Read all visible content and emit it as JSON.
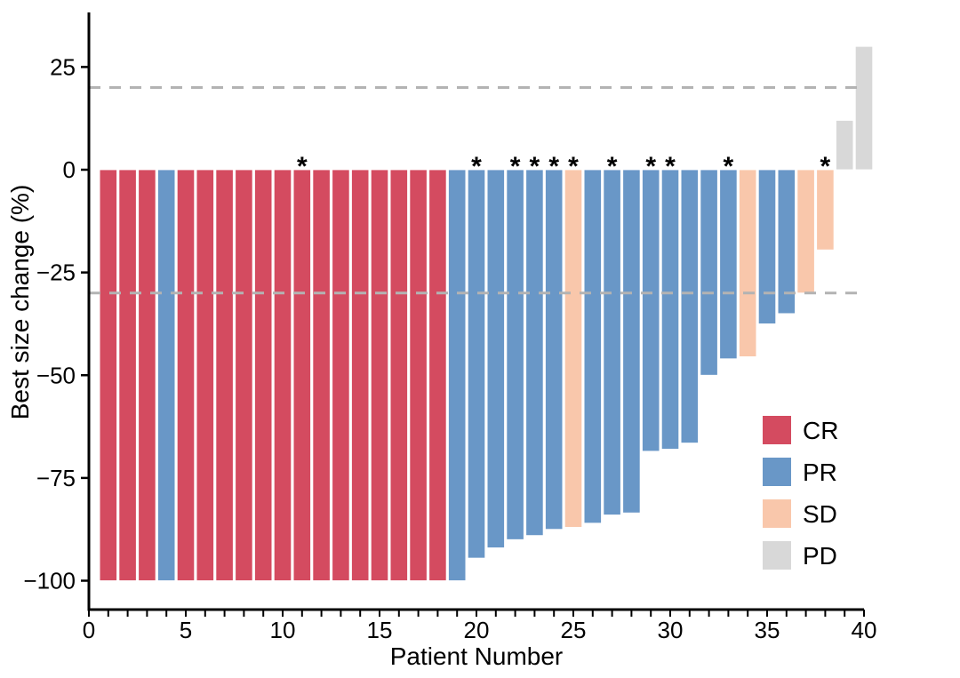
{
  "figure": {
    "background": "#ffffff"
  },
  "chart_data": {
    "type": "bar",
    "subtype": "waterfall",
    "title": "",
    "xlabel": "Patient Number",
    "ylabel": "Best size change (%)",
    "xlim": [
      0,
      40.5
    ],
    "ylim": [
      -107,
      38
    ],
    "x_major_ticks": [
      0,
      5,
      10,
      15,
      20,
      25,
      30,
      35,
      40
    ],
    "x_minor_tick_every": 1,
    "y_ticks": [
      25,
      0,
      -25,
      -50,
      -75,
      -100
    ],
    "y_tick_labels": [
      "25",
      "0",
      "−25",
      "−50",
      "−75",
      "−100"
    ],
    "grid": false,
    "reference_lines": [
      {
        "value": 20,
        "style": "dashed",
        "color": "#b3b3b3"
      },
      {
        "value": -30,
        "style": "dashed",
        "color": "#b3b3b3"
      }
    ],
    "legend": {
      "position": "right-middle",
      "entries": [
        {
          "label": "CR",
          "color": "#d44b60"
        },
        {
          "label": "PR",
          "color": "#6997c7"
        },
        {
          "label": "SD",
          "color": "#f9c7ab"
        },
        {
          "label": "PD",
          "color": "#d8d8d8"
        }
      ]
    },
    "annotation_symbol": "*",
    "patients": [
      {
        "patient": 1,
        "value": -100,
        "response": "CR",
        "asterisk": false
      },
      {
        "patient": 2,
        "value": -100,
        "response": "CR",
        "asterisk": false
      },
      {
        "patient": 3,
        "value": -100,
        "response": "CR",
        "asterisk": false
      },
      {
        "patient": 4,
        "value": -100,
        "response": "PR",
        "asterisk": false
      },
      {
        "patient": 5,
        "value": -100,
        "response": "CR",
        "asterisk": false
      },
      {
        "patient": 6,
        "value": -100,
        "response": "CR",
        "asterisk": false
      },
      {
        "patient": 7,
        "value": -100,
        "response": "CR",
        "asterisk": false
      },
      {
        "patient": 8,
        "value": -100,
        "response": "CR",
        "asterisk": false
      },
      {
        "patient": 9,
        "value": -100,
        "response": "CR",
        "asterisk": false
      },
      {
        "patient": 10,
        "value": -100,
        "response": "CR",
        "asterisk": false
      },
      {
        "patient": 11,
        "value": -100,
        "response": "CR",
        "asterisk": true
      },
      {
        "patient": 12,
        "value": -100,
        "response": "CR",
        "asterisk": false
      },
      {
        "patient": 13,
        "value": -100,
        "response": "CR",
        "asterisk": false
      },
      {
        "patient": 14,
        "value": -100,
        "response": "CR",
        "asterisk": false
      },
      {
        "patient": 15,
        "value": -100,
        "response": "CR",
        "asterisk": false
      },
      {
        "patient": 16,
        "value": -100,
        "response": "CR",
        "asterisk": false
      },
      {
        "patient": 17,
        "value": -100,
        "response": "CR",
        "asterisk": false
      },
      {
        "patient": 18,
        "value": -100,
        "response": "CR",
        "asterisk": false
      },
      {
        "patient": 19,
        "value": -100,
        "response": "PR",
        "asterisk": false
      },
      {
        "patient": 20,
        "value": -94.5,
        "response": "PR",
        "asterisk": true
      },
      {
        "patient": 21,
        "value": -92,
        "response": "PR",
        "asterisk": false
      },
      {
        "patient": 22,
        "value": -90,
        "response": "PR",
        "asterisk": true
      },
      {
        "patient": 23,
        "value": -89,
        "response": "PR",
        "asterisk": true
      },
      {
        "patient": 24,
        "value": -87.5,
        "response": "PR",
        "asterisk": true
      },
      {
        "patient": 25,
        "value": -87,
        "response": "SD",
        "asterisk": true
      },
      {
        "patient": 26,
        "value": -86,
        "response": "PR",
        "asterisk": false
      },
      {
        "patient": 27,
        "value": -84,
        "response": "PR",
        "asterisk": true
      },
      {
        "patient": 28,
        "value": -83.5,
        "response": "PR",
        "asterisk": false
      },
      {
        "patient": 29,
        "value": -68.5,
        "response": "PR",
        "asterisk": true
      },
      {
        "patient": 30,
        "value": -68,
        "response": "PR",
        "asterisk": true
      },
      {
        "patient": 31,
        "value": -66.5,
        "response": "PR",
        "asterisk": false
      },
      {
        "patient": 32,
        "value": -50,
        "response": "PR",
        "asterisk": false
      },
      {
        "patient": 33,
        "value": -46,
        "response": "PR",
        "asterisk": true
      },
      {
        "patient": 34,
        "value": -45.5,
        "response": "SD",
        "asterisk": false
      },
      {
        "patient": 35,
        "value": -37.5,
        "response": "PR",
        "asterisk": false
      },
      {
        "patient": 36,
        "value": -35,
        "response": "PR",
        "asterisk": false
      },
      {
        "patient": 37,
        "value": -30,
        "response": "SD",
        "asterisk": false
      },
      {
        "patient": 38,
        "value": -19.5,
        "response": "SD",
        "asterisk": true
      },
      {
        "patient": 39,
        "value": 12,
        "response": "PD",
        "asterisk": false
      },
      {
        "patient": 40,
        "value": 30,
        "response": "PD",
        "asterisk": false
      }
    ]
  },
  "style": {
    "axis_color": "#000000",
    "bar_edge_color": "#ffffff",
    "dash_color": "#b3b3b3"
  }
}
